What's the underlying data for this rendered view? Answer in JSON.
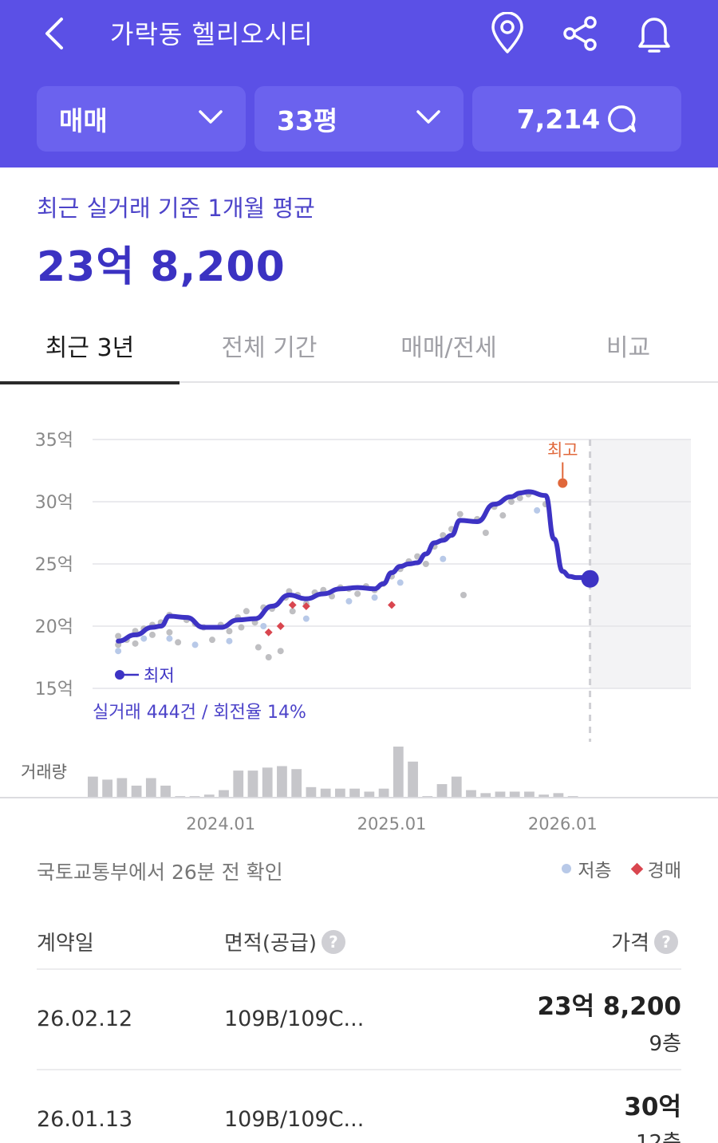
{
  "header": {
    "title": "가락동 헬리오시티",
    "back_icon": "chevron-left-icon",
    "icons": [
      "map-pin-icon",
      "share-icon",
      "bell-icon"
    ]
  },
  "filters": {
    "trade_type": "매매",
    "size": "33평",
    "count": "7,214"
  },
  "summary": {
    "label": "최근 실거래 기준 1개월 평균",
    "value": "23억 8,200"
  },
  "tabs": [
    {
      "label": "최근 3년",
      "active": true
    },
    {
      "label": "전체 기간",
      "active": false
    },
    {
      "label": "매매/전세",
      "active": false
    },
    {
      "label": "비교",
      "active": false
    }
  ],
  "chart_data": {
    "type": "line",
    "y_tick_labels": [
      "35억",
      "30억",
      "25억",
      "20억",
      "15억"
    ],
    "y_ticks": [
      35,
      30,
      25,
      20,
      15
    ],
    "ylim": [
      15,
      35
    ],
    "x_tick_labels": [
      "2024.01",
      "2025.01",
      "2026.01"
    ],
    "x_ticks": [
      2024.0,
      2025.0,
      2026.0
    ],
    "xlim": [
      2023.25,
      2026.75
    ],
    "volume_label": "거래량",
    "max_label": "최고",
    "min_label": "최저",
    "stats_text": "실거래 444건 / 회전율 14%",
    "colors": {
      "line": "#3d33c4",
      "max": "#e0673a",
      "low_floor": "#b8c9e8",
      "auction": "#d9464f",
      "dots": "#a9a9ae"
    },
    "max_point": [
      2026.0,
      31.5
    ],
    "min_point": [
      2023.4,
      17.5
    ],
    "line": {
      "x": [
        2023.4,
        2023.5,
        2023.6,
        2023.65,
        2023.7,
        2023.8,
        2023.9,
        2024.0,
        2024.1,
        2024.2,
        2024.3,
        2024.4,
        2024.5,
        2024.6,
        2024.7,
        2024.8,
        2024.9,
        2024.95,
        2025.0,
        2025.05,
        2025.1,
        2025.15,
        2025.2,
        2025.25,
        2025.3,
        2025.35,
        2025.4,
        2025.5,
        2025.6,
        2025.7,
        2025.75,
        2025.8,
        2025.9,
        2025.95,
        2026.0,
        2026.04,
        2026.08,
        2026.12,
        2026.16
      ],
      "y": [
        18.8,
        19.3,
        19.9,
        20.0,
        20.8,
        20.7,
        19.9,
        19.9,
        20.5,
        20.6,
        21.6,
        22.5,
        22.2,
        22.6,
        23.0,
        23.1,
        23.0,
        23.4,
        24.3,
        24.8,
        25.0,
        25.1,
        25.8,
        26.7,
        26.9,
        27.3,
        28.5,
        28.4,
        29.8,
        30.4,
        30.7,
        30.8,
        30.5,
        27.0,
        24.4,
        24.0,
        23.9,
        23.9,
        23.8
      ]
    },
    "scatter": [
      {
        "x": 2023.4,
        "y": 18.5
      },
      {
        "x": 2023.4,
        "y": 19.2
      },
      {
        "x": 2023.45,
        "y": 18.9
      },
      {
        "x": 2023.5,
        "y": 19.6
      },
      {
        "x": 2023.5,
        "y": 18.6
      },
      {
        "x": 2023.55,
        "y": 19.8
      },
      {
        "x": 2023.6,
        "y": 20.1
      },
      {
        "x": 2023.6,
        "y": 19.3
      },
      {
        "x": 2023.65,
        "y": 20.3
      },
      {
        "x": 2023.7,
        "y": 19.5
      },
      {
        "x": 2023.7,
        "y": 20.9
      },
      {
        "x": 2023.75,
        "y": 18.7
      },
      {
        "x": 2023.8,
        "y": 20.5
      },
      {
        "x": 2023.85,
        "y": 20.2
      },
      {
        "x": 2023.9,
        "y": 19.9
      },
      {
        "x": 2023.95,
        "y": 18.9
      },
      {
        "x": 2024.0,
        "y": 20.1
      },
      {
        "x": 2024.05,
        "y": 19.6
      },
      {
        "x": 2024.1,
        "y": 20.7
      },
      {
        "x": 2024.12,
        "y": 19.9
      },
      {
        "x": 2024.15,
        "y": 21.2
      },
      {
        "x": 2024.2,
        "y": 20.3
      },
      {
        "x": 2024.22,
        "y": 18.3
      },
      {
        "x": 2024.25,
        "y": 21.5
      },
      {
        "x": 2024.28,
        "y": 17.5
      },
      {
        "x": 2024.3,
        "y": 21.4
      },
      {
        "x": 2024.35,
        "y": 18.0
      },
      {
        "x": 2024.38,
        "y": 22.3
      },
      {
        "x": 2024.4,
        "y": 22.8
      },
      {
        "x": 2024.42,
        "y": 21.2
      },
      {
        "x": 2024.45,
        "y": 22.5
      },
      {
        "x": 2024.5,
        "y": 21.8
      },
      {
        "x": 2024.55,
        "y": 22.7
      },
      {
        "x": 2024.6,
        "y": 22.9
      },
      {
        "x": 2024.65,
        "y": 22.4
      },
      {
        "x": 2024.7,
        "y": 23.1
      },
      {
        "x": 2024.75,
        "y": 23.0
      },
      {
        "x": 2024.8,
        "y": 22.6
      },
      {
        "x": 2024.85,
        "y": 23.2
      },
      {
        "x": 2024.9,
        "y": 22.9
      },
      {
        "x": 2024.95,
        "y": 23.4
      },
      {
        "x": 2025.0,
        "y": 24.0
      },
      {
        "x": 2025.05,
        "y": 24.6
      },
      {
        "x": 2025.1,
        "y": 25.2
      },
      {
        "x": 2025.15,
        "y": 25.6
      },
      {
        "x": 2025.2,
        "y": 25.0
      },
      {
        "x": 2025.25,
        "y": 26.4
      },
      {
        "x": 2025.3,
        "y": 27.3
      },
      {
        "x": 2025.35,
        "y": 27.8
      },
      {
        "x": 2025.4,
        "y": 29.0
      },
      {
        "x": 2025.42,
        "y": 22.5
      },
      {
        "x": 2025.5,
        "y": 28.6
      },
      {
        "x": 2025.55,
        "y": 27.5
      },
      {
        "x": 2025.6,
        "y": 29.6
      },
      {
        "x": 2025.65,
        "y": 28.9
      },
      {
        "x": 2025.7,
        "y": 30.0
      },
      {
        "x": 2025.75,
        "y": 30.3
      },
      {
        "x": 2025.8,
        "y": 30.6
      },
      {
        "x": 2025.9,
        "y": 29.8
      }
    ],
    "low_floor_points": [
      {
        "x": 2023.4,
        "y": 18.0
      },
      {
        "x": 2023.55,
        "y": 19.0
      },
      {
        "x": 2023.7,
        "y": 19.0
      },
      {
        "x": 2023.85,
        "y": 18.5
      },
      {
        "x": 2024.05,
        "y": 18.8
      },
      {
        "x": 2024.25,
        "y": 20.0
      },
      {
        "x": 2024.5,
        "y": 20.6
      },
      {
        "x": 2024.75,
        "y": 22.0
      },
      {
        "x": 2024.9,
        "y": 22.3
      },
      {
        "x": 2025.05,
        "y": 23.5
      },
      {
        "x": 2025.3,
        "y": 25.4
      },
      {
        "x": 2025.85,
        "y": 29.3
      }
    ],
    "auction_points": [
      {
        "x": 2024.28,
        "y": 19.5
      },
      {
        "x": 2024.35,
        "y": 20.0
      },
      {
        "x": 2024.42,
        "y": 21.7
      },
      {
        "x": 2024.5,
        "y": 21.6
      },
      {
        "x": 2025.0,
        "y": 21.7
      }
    ],
    "volume": [
      14,
      12,
      13,
      8,
      13,
      8,
      1,
      1,
      2,
      5,
      18,
      18,
      20,
      21,
      19,
      7,
      6,
      6,
      6,
      4,
      6,
      34,
      24,
      1,
      9,
      14,
      5,
      3,
      4,
      4,
      4,
      2,
      3,
      1
    ]
  },
  "source_note": "국토교통부에서 26분 전 확인",
  "legend": {
    "low_floor": "저층",
    "auction": "경매"
  },
  "table": {
    "headers": {
      "date": "계약일",
      "area": "면적(공급)",
      "price": "가격"
    },
    "help_glyph": "?",
    "rows": [
      {
        "date": "26.02.12",
        "area": "109B/109C...",
        "price": "23억 8,200",
        "floor": "9층"
      },
      {
        "date": "26.01.13",
        "area": "109B/109C...",
        "price": "30억",
        "floor": "12층"
      }
    ]
  }
}
